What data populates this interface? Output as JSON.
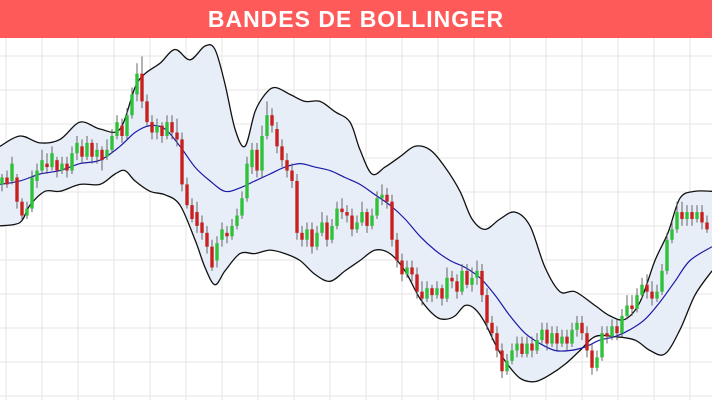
{
  "banner": {
    "title": "BANDES DE BOLLINGER",
    "color": "#ff5a5a"
  },
  "chart_data": {
    "type": "candlestick",
    "title": "BANDES DE BOLLINGER",
    "xlabel": "",
    "ylabel": "",
    "grid": true,
    "ylim": [
      0,
      100
    ],
    "colors": {
      "up": "#2fc13a",
      "down": "#c8201f",
      "band_fill": "#e8eef8",
      "band_line": "#111111",
      "middle_line": "#1a1aa8",
      "grid": "#e6e6e6"
    },
    "upper_band": [
      [
        0,
        71
      ],
      [
        20,
        74
      ],
      [
        40,
        72
      ],
      [
        60,
        73
      ],
      [
        80,
        78
      ],
      [
        100,
        76
      ],
      [
        120,
        76
      ],
      [
        135,
        88
      ],
      [
        145,
        92
      ],
      [
        160,
        95
      ],
      [
        175,
        99
      ],
      [
        190,
        96
      ],
      [
        205,
        100
      ],
      [
        215,
        99
      ],
      [
        225,
        89
      ],
      [
        235,
        76
      ],
      [
        245,
        71
      ],
      [
        255,
        81
      ],
      [
        265,
        86
      ],
      [
        275,
        88
      ],
      [
        290,
        86
      ],
      [
        305,
        84
      ],
      [
        320,
        84
      ],
      [
        335,
        81
      ],
      [
        350,
        78
      ],
      [
        360,
        70
      ],
      [
        372,
        63
      ],
      [
        385,
        65
      ],
      [
        400,
        68
      ],
      [
        415,
        71
      ],
      [
        430,
        70
      ],
      [
        445,
        65
      ],
      [
        460,
        58
      ],
      [
        472,
        50
      ],
      [
        485,
        47
      ],
      [
        500,
        50
      ],
      [
        515,
        52
      ],
      [
        530,
        48
      ],
      [
        545,
        36
      ],
      [
        560,
        29
      ],
      [
        575,
        29
      ],
      [
        595,
        25
      ],
      [
        610,
        22
      ],
      [
        625,
        21
      ],
      [
        640,
        26
      ],
      [
        655,
        38
      ],
      [
        668,
        46
      ],
      [
        680,
        56
      ],
      [
        695,
        58
      ],
      [
        712,
        58
      ]
    ],
    "lower_band": [
      [
        0,
        48
      ],
      [
        20,
        49
      ],
      [
        30,
        54
      ],
      [
        45,
        58
      ],
      [
        60,
        58
      ],
      [
        80,
        60
      ],
      [
        100,
        60
      ],
      [
        115,
        63
      ],
      [
        125,
        64
      ],
      [
        135,
        61
      ],
      [
        150,
        58
      ],
      [
        165,
        57
      ],
      [
        180,
        54
      ],
      [
        195,
        44
      ],
      [
        205,
        36
      ],
      [
        215,
        31
      ],
      [
        225,
        35
      ],
      [
        240,
        40
      ],
      [
        255,
        40
      ],
      [
        270,
        41
      ],
      [
        285,
        40
      ],
      [
        300,
        38
      ],
      [
        315,
        34
      ],
      [
        330,
        32
      ],
      [
        345,
        35
      ],
      [
        360,
        38
      ],
      [
        375,
        41
      ],
      [
        390,
        40
      ],
      [
        405,
        35
      ],
      [
        420,
        27
      ],
      [
        435,
        22
      ],
      [
        445,
        21
      ],
      [
        455,
        22
      ],
      [
        465,
        25
      ],
      [
        475,
        24
      ],
      [
        485,
        20
      ],
      [
        495,
        14
      ],
      [
        505,
        9
      ],
      [
        520,
        4
      ],
      [
        535,
        3
      ],
      [
        550,
        5
      ],
      [
        565,
        8
      ],
      [
        580,
        12
      ],
      [
        595,
        16
      ],
      [
        615,
        16
      ],
      [
        635,
        15
      ],
      [
        650,
        12
      ],
      [
        665,
        11
      ],
      [
        680,
        18
      ],
      [
        695,
        28
      ],
      [
        712,
        35
      ]
    ],
    "middle_band": [
      [
        0,
        60
      ],
      [
        20,
        61
      ],
      [
        40,
        63
      ],
      [
        60,
        64
      ],
      [
        80,
        66
      ],
      [
        100,
        67
      ],
      [
        120,
        71
      ],
      [
        135,
        75
      ],
      [
        150,
        77
      ],
      [
        165,
        76
      ],
      [
        180,
        71
      ],
      [
        195,
        65
      ],
      [
        210,
        61
      ],
      [
        225,
        58
      ],
      [
        240,
        59
      ],
      [
        255,
        61
      ],
      [
        270,
        63
      ],
      [
        285,
        65
      ],
      [
        300,
        66
      ],
      [
        315,
        65
      ],
      [
        330,
        64
      ],
      [
        345,
        62
      ],
      [
        360,
        60
      ],
      [
        375,
        57
      ],
      [
        390,
        54
      ],
      [
        405,
        50
      ],
      [
        420,
        45
      ],
      [
        435,
        41
      ],
      [
        450,
        38
      ],
      [
        465,
        36
      ],
      [
        480,
        33
      ],
      [
        495,
        28
      ],
      [
        510,
        22
      ],
      [
        525,
        17
      ],
      [
        540,
        14
      ],
      [
        555,
        12
      ],
      [
        570,
        12
      ],
      [
        585,
        13
      ],
      [
        600,
        15
      ],
      [
        615,
        16
      ],
      [
        630,
        18
      ],
      [
        645,
        21
      ],
      [
        660,
        26
      ],
      [
        675,
        32
      ],
      [
        690,
        38
      ],
      [
        712,
        42
      ]
    ],
    "candles": [
      [
        2,
        60,
        62,
        63,
        58
      ],
      [
        7,
        62,
        60,
        64,
        59
      ],
      [
        12,
        61,
        66,
        68,
        60
      ],
      [
        17,
        62,
        55,
        63,
        53
      ],
      [
        22,
        55,
        51,
        56,
        50
      ],
      [
        27,
        51,
        53,
        55,
        50
      ],
      [
        32,
        53,
        62,
        64,
        52
      ],
      [
        37,
        61,
        64,
        66,
        59
      ],
      [
        42,
        64,
        67,
        70,
        63
      ],
      [
        47,
        66,
        65,
        69,
        63
      ],
      [
        52,
        65,
        69,
        71,
        64
      ],
      [
        57,
        67,
        64,
        68,
        62
      ],
      [
        62,
        64,
        66,
        68,
        63
      ],
      [
        67,
        66,
        64,
        68,
        62
      ],
      [
        72,
        64,
        69,
        71,
        63
      ],
      [
        77,
        69,
        72,
        74,
        67
      ],
      [
        82,
        71,
        68,
        73,
        66
      ],
      [
        87,
        68,
        72,
        74,
        67
      ],
      [
        92,
        72,
        68,
        73,
        66
      ],
      [
        97,
        68,
        70,
        72,
        66
      ],
      [
        102,
        70,
        67,
        71,
        64
      ],
      [
        107,
        68,
        70,
        73,
        67
      ],
      [
        112,
        70,
        74,
        76,
        69
      ],
      [
        117,
        74,
        78,
        80,
        73
      ],
      [
        122,
        77,
        74,
        79,
        72
      ],
      [
        127,
        74,
        80,
        82,
        73
      ],
      [
        132,
        80,
        86,
        88,
        79
      ],
      [
        137,
        86,
        92,
        95,
        84
      ],
      [
        142,
        92,
        84,
        97,
        82
      ],
      [
        147,
        84,
        78,
        86,
        77
      ],
      [
        152,
        78,
        75,
        80,
        73
      ],
      [
        157,
        75,
        77,
        79,
        73
      ],
      [
        162,
        77,
        74,
        78,
        72
      ],
      [
        167,
        74,
        78,
        80,
        73
      ],
      [
        172,
        78,
        75,
        80,
        73
      ],
      [
        177,
        75,
        73,
        79,
        71
      ],
      [
        182,
        73,
        60,
        75,
        58
      ],
      [
        187,
        60,
        54,
        62,
        53
      ],
      [
        192,
        54,
        50,
        56,
        49
      ],
      [
        197,
        52,
        48,
        55,
        46
      ],
      [
        202,
        49,
        46,
        51,
        44
      ],
      [
        207,
        46,
        42,
        48,
        40
      ],
      [
        212,
        42,
        36,
        44,
        35
      ],
      [
        217,
        38,
        43,
        45,
        36
      ],
      [
        222,
        44,
        47,
        49,
        42
      ],
      [
        227,
        46,
        45,
        48,
        43
      ],
      [
        232,
        45,
        48,
        50,
        44
      ],
      [
        237,
        48,
        51,
        53,
        47
      ],
      [
        242,
        51,
        56,
        58,
        50
      ],
      [
        247,
        56,
        66,
        68,
        55
      ],
      [
        252,
        65,
        70,
        72,
        63
      ],
      [
        257,
        70,
        64,
        72,
        62
      ],
      [
        262,
        64,
        74,
        77,
        62
      ],
      [
        267,
        74,
        80,
        84,
        73
      ],
      [
        272,
        80,
        77,
        82,
        75
      ],
      [
        277,
        76,
        71,
        78,
        69
      ],
      [
        282,
        71,
        67,
        73,
        65
      ],
      [
        287,
        67,
        64,
        69,
        62
      ],
      [
        292,
        64,
        61,
        66,
        59
      ],
      [
        297,
        61,
        46,
        63,
        44
      ],
      [
        302,
        46,
        44,
        48,
        42
      ],
      [
        307,
        44,
        47,
        49,
        42
      ],
      [
        312,
        47,
        42,
        49,
        40
      ],
      [
        317,
        42,
        46,
        48,
        41
      ],
      [
        322,
        46,
        49,
        52,
        45
      ],
      [
        327,
        49,
        44,
        51,
        42
      ],
      [
        332,
        44,
        48,
        50,
        43
      ],
      [
        337,
        48,
        53,
        55,
        47
      ],
      [
        342,
        53,
        52,
        56,
        50
      ],
      [
        347,
        52,
        51,
        54,
        49
      ],
      [
        352,
        51,
        47,
        53,
        45
      ],
      [
        357,
        47,
        49,
        51,
        46
      ],
      [
        362,
        49,
        52,
        55,
        48
      ],
      [
        367,
        52,
        48,
        53,
        46
      ],
      [
        372,
        48,
        51,
        53,
        47
      ],
      [
        377,
        51,
        56,
        58,
        50
      ],
      [
        382,
        56,
        57,
        60,
        54
      ],
      [
        387,
        57,
        55,
        59,
        53
      ],
      [
        392,
        55,
        44,
        57,
        42
      ],
      [
        397,
        44,
        38,
        46,
        36
      ],
      [
        402,
        38,
        34,
        40,
        32
      ],
      [
        407,
        34,
        36,
        38,
        33
      ],
      [
        412,
        36,
        34,
        38,
        32
      ],
      [
        417,
        34,
        29,
        36,
        27
      ],
      [
        422,
        29,
        27,
        32,
        25
      ],
      [
        427,
        27,
        30,
        32,
        26
      ],
      [
        432,
        30,
        28,
        31,
        26
      ],
      [
        437,
        28,
        30,
        32,
        27
      ],
      [
        442,
        30,
        27,
        31,
        25
      ],
      [
        447,
        27,
        33,
        36,
        26
      ],
      [
        452,
        33,
        32,
        35,
        30
      ],
      [
        457,
        32,
        29,
        34,
        27
      ],
      [
        462,
        29,
        35,
        37,
        28
      ],
      [
        467,
        35,
        31,
        37,
        30
      ],
      [
        472,
        31,
        33,
        36,
        29
      ],
      [
        477,
        33,
        35,
        38,
        31
      ],
      [
        482,
        35,
        28,
        37,
        26
      ],
      [
        487,
        28,
        20,
        30,
        18
      ],
      [
        492,
        20,
        17,
        22,
        15
      ],
      [
        497,
        17,
        12,
        19,
        10
      ],
      [
        502,
        12,
        6,
        14,
        4
      ],
      [
        507,
        6,
        9,
        11,
        5
      ],
      [
        512,
        9,
        12,
        14,
        8
      ],
      [
        517,
        12,
        14,
        16,
        10
      ],
      [
        522,
        14,
        11,
        16,
        10
      ],
      [
        527,
        11,
        14,
        16,
        10
      ],
      [
        532,
        14,
        12,
        16,
        10
      ],
      [
        537,
        12,
        15,
        17,
        11
      ],
      [
        542,
        15,
        18,
        20,
        14
      ],
      [
        547,
        18,
        14,
        20,
        12
      ],
      [
        552,
        14,
        17,
        19,
        13
      ],
      [
        557,
        17,
        14,
        19,
        12
      ],
      [
        562,
        14,
        16,
        18,
        13
      ],
      [
        567,
        16,
        14,
        18,
        12
      ],
      [
        572,
        14,
        18,
        20,
        13
      ],
      [
        577,
        18,
        20,
        22,
        16
      ],
      [
        582,
        20,
        17,
        22,
        15
      ],
      [
        587,
        17,
        12,
        19,
        10
      ],
      [
        592,
        12,
        7,
        14,
        5
      ],
      [
        597,
        7,
        10,
        12,
        6
      ],
      [
        602,
        10,
        17,
        19,
        9
      ],
      [
        607,
        17,
        16,
        19,
        14
      ],
      [
        612,
        16,
        19,
        21,
        15
      ],
      [
        617,
        19,
        17,
        21,
        15
      ],
      [
        622,
        17,
        22,
        24,
        16
      ],
      [
        627,
        22,
        25,
        28,
        21
      ],
      [
        632,
        25,
        24,
        28,
        22
      ],
      [
        637,
        24,
        28,
        30,
        23
      ],
      [
        642,
        28,
        31,
        33,
        27
      ],
      [
        647,
        31,
        29,
        34,
        27
      ],
      [
        652,
        29,
        27,
        32,
        25
      ],
      [
        657,
        27,
        29,
        31,
        26
      ],
      [
        662,
        29,
        35,
        37,
        28
      ],
      [
        667,
        35,
        44,
        46,
        34
      ],
      [
        672,
        44,
        47,
        49,
        43
      ],
      [
        677,
        47,
        52,
        55,
        46
      ],
      [
        682,
        52,
        50,
        55,
        48
      ],
      [
        687,
        50,
        52,
        54,
        48
      ],
      [
        692,
        52,
        50,
        54,
        48
      ],
      [
        697,
        50,
        52,
        54,
        49
      ],
      [
        702,
        52,
        49,
        54,
        47
      ],
      [
        707,
        49,
        47,
        51,
        46
      ]
    ]
  }
}
